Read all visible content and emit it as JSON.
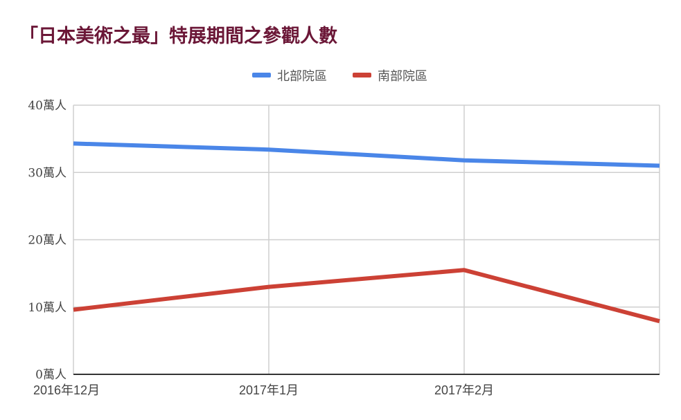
{
  "chart_data": {
    "type": "line",
    "title": "「日本美術之最」特展期間之參觀人數",
    "categories": [
      "2016年12月",
      "2017年1月",
      "2017年2月",
      ""
    ],
    "y_ticks": [
      "0萬人",
      "10萬人",
      "20萬人",
      "30萬人",
      "40萬人"
    ],
    "ylim": [
      0,
      40
    ],
    "y_unit": "萬人",
    "legend_position": "top",
    "grid": true,
    "series": [
      {
        "name": "北部院區",
        "color": "#4a86e8",
        "values": [
          34.3,
          33.4,
          31.8,
          31.0
        ]
      },
      {
        "name": "南部院區",
        "color": "#cc4135",
        "values": [
          9.6,
          13.0,
          15.5,
          7.9
        ]
      }
    ]
  }
}
